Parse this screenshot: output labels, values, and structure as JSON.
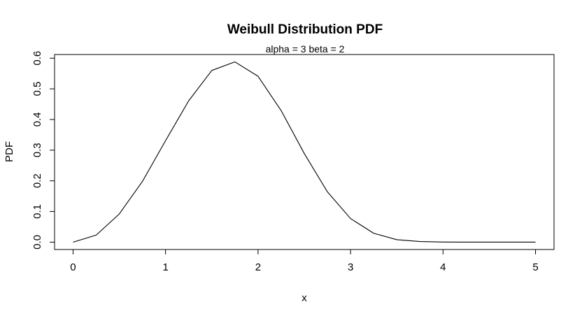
{
  "chart_data": {
    "type": "line",
    "title": "Weibull Distribution PDF",
    "subtitle": "alpha = 3  beta = 2",
    "xlabel": "x",
    "ylabel": "PDF",
    "xlim": [
      -0.2,
      5.2
    ],
    "ylim": [
      -0.024,
      0.612
    ],
    "x_ticks": [
      0,
      1,
      2,
      3,
      4,
      5
    ],
    "y_ticks": [
      0.0,
      0.1,
      0.2,
      0.3,
      0.4,
      0.5,
      0.6
    ],
    "x_tick_labels": [
      "0",
      "1",
      "2",
      "3",
      "4",
      "5"
    ],
    "y_tick_labels": [
      "0.0",
      "0.1",
      "0.2",
      "0.3",
      "0.4",
      "0.5",
      "0.6"
    ],
    "grid": false,
    "legend": "none",
    "line_color": "#000000",
    "series": [
      {
        "x": [
          0,
          0.25,
          0.5,
          0.75,
          1.0,
          1.25,
          1.5,
          1.75,
          2.0,
          2.25,
          2.5,
          2.75,
          3.0,
          3.25,
          3.5,
          3.75,
          4.0,
          4.25,
          4.5,
          4.75,
          5.0
        ],
        "values": [
          0,
          0.023,
          0.092,
          0.198,
          0.331,
          0.461,
          0.56,
          0.588,
          0.541,
          0.429,
          0.289,
          0.164,
          0.077,
          0.029,
          0.008,
          0.002,
          0.0003,
          3e-05,
          3e-06,
          1e-07,
          0.0
        ]
      }
    ]
  }
}
